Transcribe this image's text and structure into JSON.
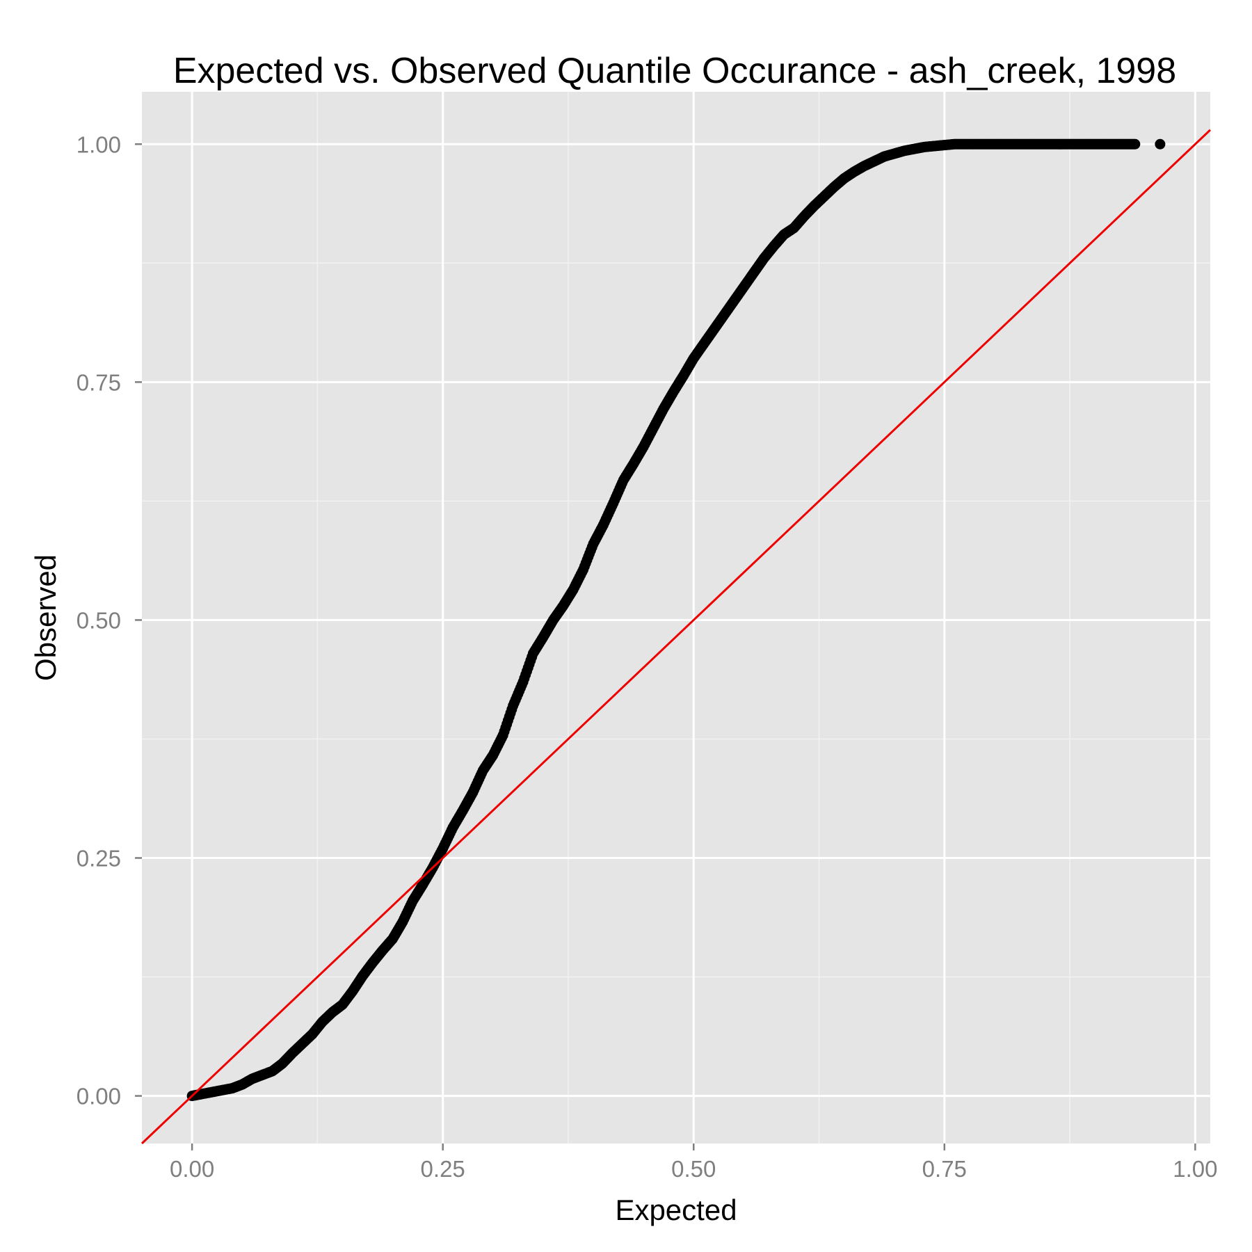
{
  "chart_data": {
    "type": "scatter",
    "title": "Expected vs. Observed Quantile Occurance - ash_creek, 1998",
    "xlabel": "Expected",
    "ylabel": "Observed",
    "xlim": [
      -0.05,
      1.015
    ],
    "ylim": [
      -0.05,
      1.055
    ],
    "x_ticks": [
      0,
      0.25,
      0.5,
      0.75,
      1
    ],
    "x_tick_labels": [
      "0.00",
      "0.25",
      "0.50",
      "0.75",
      "1.00"
    ],
    "y_ticks": [
      0,
      0.25,
      0.5,
      0.75,
      1
    ],
    "y_tick_labels": [
      "0.00",
      "0.25",
      "0.50",
      "0.75",
      "1.00"
    ],
    "grid": true,
    "panel_background": "#e5e5e5",
    "point_color": "#000000",
    "line_color": "#ee0000",
    "points": {
      "x": [
        0.0,
        0.01,
        0.02,
        0.03,
        0.04,
        0.05,
        0.06,
        0.07,
        0.08,
        0.09,
        0.1,
        0.11,
        0.12,
        0.13,
        0.14,
        0.15,
        0.16,
        0.17,
        0.18,
        0.19,
        0.2,
        0.21,
        0.22,
        0.23,
        0.24,
        0.25,
        0.26,
        0.27,
        0.28,
        0.29,
        0.3,
        0.31,
        0.32,
        0.33,
        0.34,
        0.35,
        0.36,
        0.37,
        0.38,
        0.39,
        0.4,
        0.41,
        0.42,
        0.43,
        0.44,
        0.45,
        0.46,
        0.47,
        0.48,
        0.49,
        0.5,
        0.51,
        0.52,
        0.53,
        0.54,
        0.55,
        0.56,
        0.57,
        0.58,
        0.59,
        0.6,
        0.61,
        0.62,
        0.63,
        0.64,
        0.65,
        0.66,
        0.67,
        0.68,
        0.69,
        0.7,
        0.71,
        0.72,
        0.73,
        0.74,
        0.75,
        0.76,
        0.77,
        0.78,
        0.79,
        0.8,
        0.81,
        0.82,
        0.83,
        0.84,
        0.85,
        0.86,
        0.87,
        0.88,
        0.89,
        0.9,
        0.91,
        0.92,
        0.93,
        0.94,
        0.965
      ],
      "y": [
        0.0,
        0.002,
        0.004,
        0.006,
        0.008,
        0.012,
        0.018,
        0.022,
        0.026,
        0.034,
        0.045,
        0.055,
        0.065,
        0.078,
        0.088,
        0.096,
        0.11,
        0.126,
        0.14,
        0.153,
        0.165,
        0.183,
        0.205,
        0.222,
        0.24,
        0.26,
        0.282,
        0.3,
        0.319,
        0.342,
        0.358,
        0.379,
        0.41,
        0.435,
        0.465,
        0.482,
        0.5,
        0.515,
        0.532,
        0.553,
        0.58,
        0.6,
        0.623,
        0.647,
        0.664,
        0.682,
        0.702,
        0.722,
        0.74,
        0.757,
        0.775,
        0.79,
        0.805,
        0.82,
        0.835,
        0.85,
        0.865,
        0.88,
        0.893,
        0.905,
        0.912,
        0.924,
        0.935,
        0.945,
        0.955,
        0.964,
        0.971,
        0.977,
        0.982,
        0.987,
        0.99,
        0.993,
        0.995,
        0.997,
        0.998,
        0.999,
        1.0,
        1.0,
        1.0,
        1.0,
        1.0,
        1.0,
        1.0,
        1.0,
        1.0,
        1.0,
        1.0,
        1.0,
        1.0,
        1.0,
        1.0,
        1.0,
        1.0,
        1.0,
        1.0,
        1.0
      ]
    },
    "reference_line": {
      "slope": 1,
      "intercept": 0
    }
  }
}
